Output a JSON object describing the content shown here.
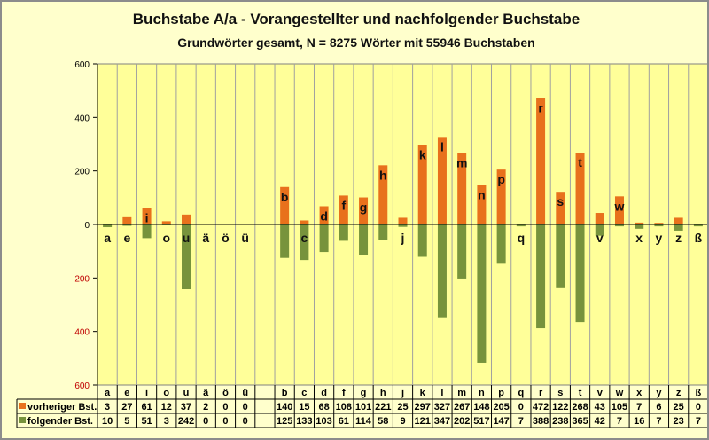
{
  "chart_data": {
    "type": "bar",
    "title": "Buchstabe A/a - Vorangestellter  und nachfolgender Buchstabe",
    "subtitle": "Grundwörter gesamt, N = 8275 Wörter mit 55946 Buchstaben",
    "categories": [
      "a",
      "e",
      "i",
      "o",
      "u",
      "ä",
      "ö",
      "ü",
      "",
      "b",
      "c",
      "d",
      "f",
      "g",
      "h",
      "j",
      "k",
      "l",
      "m",
      "n",
      "p",
      "q",
      "r",
      "s",
      "t",
      "v",
      "w",
      "x",
      "y",
      "z",
      "ß"
    ],
    "series": [
      {
        "name": "vorheriger Bst.",
        "color": "#E8711C",
        "direction": "up",
        "values": [
          3,
          27,
          61,
          12,
          37,
          2,
          0,
          0,
          null,
          140,
          15,
          68,
          108,
          101,
          221,
          25,
          297,
          327,
          267,
          148,
          205,
          0,
          472,
          122,
          268,
          43,
          105,
          7,
          6,
          25,
          0
        ]
      },
      {
        "name": "folgender Bst.",
        "color": "#77933C",
        "direction": "down",
        "values": [
          10,
          5,
          51,
          3,
          242,
          0,
          0,
          0,
          null,
          125,
          133,
          103,
          61,
          114,
          58,
          9,
          121,
          347,
          202,
          517,
          147,
          7,
          388,
          238,
          365,
          42,
          7,
          16,
          7,
          23,
          7
        ]
      }
    ],
    "yticks": [
      "600",
      "400",
      "200",
      "0",
      "200",
      "400",
      "600"
    ],
    "ylim": [
      -600,
      600
    ],
    "grid": "vertical",
    "legend": "data-table",
    "colors": {
      "background": "#FFFFCC",
      "plot": "#FFFF99"
    }
  }
}
